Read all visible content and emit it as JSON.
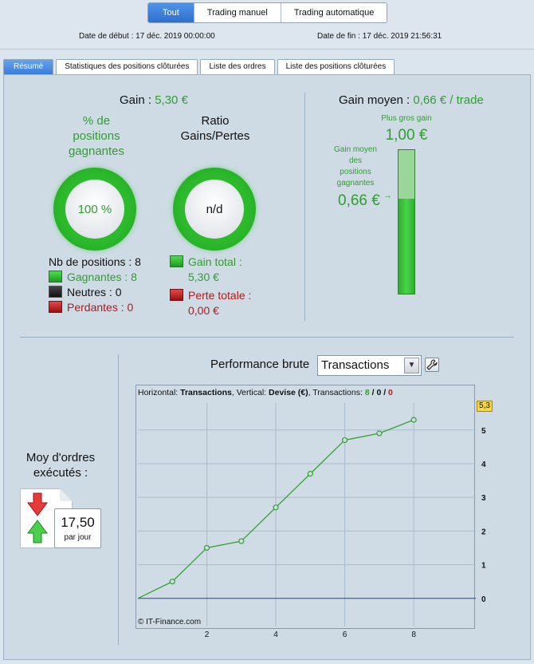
{
  "header": {
    "filters": [
      "Tout",
      "Trading manuel",
      "Trading automatique"
    ],
    "start_label": "Date de début :",
    "start_value": "17 déc. 2019 00:00:00",
    "end_label": "Date de fin :",
    "end_value": "17 déc. 2019 21:56:31"
  },
  "tabs": [
    "Résumé",
    "Statistiques des positions clôturées",
    "Liste des ordres",
    "Liste des positions clôturées"
  ],
  "summary": {
    "gain_label": "Gain :",
    "gain_value": "5,30 €",
    "pct_title_1": "% de",
    "pct_title_2": "positions",
    "pct_title_3": "gagnantes",
    "pct_value": "100 %",
    "ratio_title_1": "Ratio",
    "ratio_title_2": "Gains/Pertes",
    "ratio_value": "n/d",
    "nb_positions_label": "Nb de positions : 8",
    "winners_label": "Gagnantes : 8",
    "neutral_label": "Neutres : 0",
    "losers_label": "Perdantes : 0",
    "total_gain_label": "Gain total :",
    "total_gain_value": "5,30 €",
    "total_loss_label": "Perte totale :",
    "total_loss_value": "0,00 €",
    "avg_gain_label": "Gain moyen :",
    "avg_gain_value": "0,66 € / trade",
    "biggest_gain_label": "Plus gros gain",
    "biggest_gain_value": "1,00 €",
    "avg_win_label_1": "Gain moyen",
    "avg_win_label_2": "des",
    "avg_win_label_3": "positions",
    "avg_win_label_4": "gagnantes",
    "avg_win_value": "0,66 €",
    "avg_win_fill_fraction": 0.66
  },
  "performance": {
    "title": "Performance brute",
    "dropdown_value": "Transactions",
    "info_prefix": "Horizontal:",
    "info_h": "Transactions",
    "info_v_prefix": ", Vertical:",
    "info_v": "Devise (€)",
    "info_tx_prefix": ", Transactions:",
    "info_tx_win": "8",
    "info_tx_sep1": "/",
    "info_tx_neutral": "0",
    "info_tx_sep2": "/",
    "info_tx_loss": "0",
    "copyright": "© IT-Finance.com",
    "last_value_badge": "5,3"
  },
  "orders": {
    "title_1": "Moy d'ordres",
    "title_2": "exécutés :",
    "value": "17,50",
    "unit": "par jour"
  },
  "colors": {
    "accent_blue": "#3b7ddb",
    "positive_green": "#2f9e2f",
    "negative_red": "#b11a1a",
    "line_green": "#2ea32e",
    "zero_line_blue": "#1f3fb0"
  },
  "chart_data": {
    "type": "line",
    "x": [
      0,
      1,
      2,
      3,
      4,
      5,
      6,
      7,
      8
    ],
    "series": [
      {
        "values": [
          0,
          0.5,
          1.5,
          1.7,
          2.7,
          3.7,
          4.7,
          4.9,
          5.3
        ]
      }
    ],
    "xticks": [
      "2",
      "4",
      "6",
      "8"
    ],
    "yticks": [
      "0",
      "1",
      "2",
      "3",
      "4",
      "5"
    ],
    "xlim": [
      0,
      9.8
    ],
    "ylim": [
      -0.55,
      5.8
    ],
    "grid": true
  }
}
